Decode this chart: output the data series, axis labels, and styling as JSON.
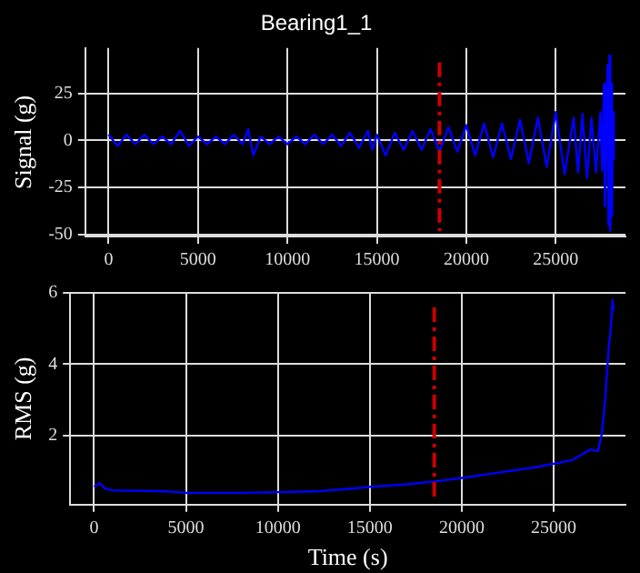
{
  "chart_data": [
    {
      "type": "line",
      "title": "Bearing1_1",
      "ylabel": "Signal (g)",
      "color": "#0000ff",
      "marker": "none",
      "grid": true,
      "x": [
        0,
        500,
        1000,
        1500,
        2000,
        2500,
        3000,
        3500,
        4000,
        4500,
        5000,
        5500,
        6000,
        6500,
        7000,
        7500,
        7800,
        8100,
        8500,
        9000,
        9500,
        10000,
        10500,
        11000,
        11500,
        12000,
        12500,
        13000,
        13500,
        14000,
        14500,
        14750,
        15000,
        15500,
        16000,
        16500,
        17000,
        17500,
        18000,
        18500,
        19000,
        19500,
        20000,
        20500,
        21000,
        21500,
        22000,
        22500,
        23000,
        23500,
        24000,
        24500,
        25000,
        25500,
        26000,
        26250,
        26500,
        26750,
        27000,
        27250,
        27500,
        27600,
        27700,
        27750,
        27900,
        27950,
        28000,
        28050,
        28100,
        28150,
        28200,
        28250
      ],
      "values": [
        3,
        -3,
        3,
        -2,
        3,
        -2,
        2,
        -2,
        5,
        -3,
        2,
        -2,
        2,
        -2,
        3,
        -2,
        6,
        -8,
        2,
        -2,
        2,
        -2,
        2,
        -2,
        3,
        -2,
        3,
        -3,
        4,
        -4,
        5,
        -5,
        3,
        -8,
        4,
        -5,
        5,
        -5,
        6,
        -6,
        7,
        -6,
        8,
        -8,
        9,
        -9,
        9,
        -10,
        11,
        -12,
        12,
        -14,
        15,
        -18,
        12,
        -17,
        14,
        -20,
        12,
        -17,
        15,
        -16,
        30,
        -35,
        40,
        -45,
        45,
        -48,
        30,
        -40,
        15,
        -10
      ],
      "xlim": [
        -1300,
        28900
      ],
      "xticks": [
        0,
        5000,
        10000,
        15000,
        20000,
        25000
      ],
      "ylim": [
        -51,
        49
      ],
      "yticks": [
        -50,
        -25,
        0,
        25
      ],
      "ref_lines": [
        {
          "axis": "x",
          "value": 18500,
          "color": "#cc0000",
          "line_style": "dashed"
        }
      ]
    },
    {
      "type": "line",
      "xlabel": "Time (s)",
      "ylabel": "RMS (g)",
      "color": "#0000ff",
      "marker": "none",
      "grid": true,
      "x": [
        0,
        300,
        600,
        1000,
        4000,
        5000,
        8000,
        10000,
        12000,
        14000,
        15000,
        17000,
        18500,
        20000,
        22000,
        24000,
        25000,
        26000,
        26500,
        27000,
        27400,
        27600,
        27800,
        27900,
        28000,
        28100,
        28200,
        28250
      ],
      "values": [
        0.55,
        0.65,
        0.5,
        0.45,
        0.42,
        0.38,
        0.38,
        0.4,
        0.42,
        0.5,
        0.55,
        0.62,
        0.7,
        0.8,
        0.95,
        1.1,
        1.2,
        1.3,
        1.45,
        1.6,
        1.55,
        2.0,
        3.0,
        3.8,
        4.5,
        5.0,
        5.8,
        5.5
      ],
      "xlim": [
        -1300,
        28900
      ],
      "xticks": [
        0,
        5000,
        10000,
        15000,
        20000,
        25000
      ],
      "ylim": [
        0.05,
        6
      ],
      "yticks": [
        2,
        4,
        6
      ],
      "ref_lines": [
        {
          "axis": "x",
          "value": 18500,
          "color": "#cc0000",
          "line_style": "dashed"
        }
      ]
    }
  ]
}
